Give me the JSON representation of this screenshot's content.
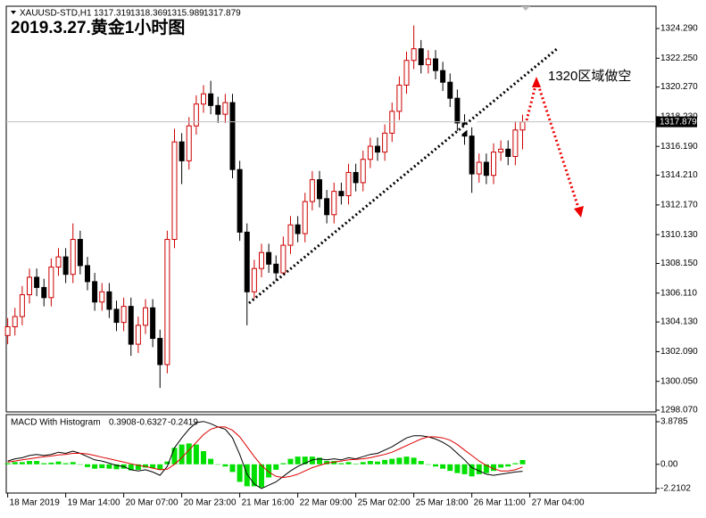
{
  "chart_data": {
    "type": "candlestick",
    "title": "2019.3.27.黄金1小时图",
    "symbol": "XAUUSD-STD,H1",
    "annotation": "1320区域做空",
    "bull_color": "#cc0000",
    "bear_color": "#000000",
    "open": [
      1303.2,
      1303.8,
      1304.5,
      1306.0,
      1307.2,
      1306.5,
      1305.8,
      1307.9,
      1308.6,
      1307.4,
      1309.8,
      1308.0,
      1306.9,
      1305.5,
      1306.2,
      1305.0,
      1304.1,
      1305.2,
      1302.6,
      1303.9,
      1305.1,
      1303.0,
      1301.2,
      1309.8,
      1316.5,
      1315.2,
      1317.6,
      1319.1,
      1319.8,
      1319.0,
      1318.4,
      1319.2,
      1314.6,
      1310.3,
      1306.2,
      1307.8,
      1308.9,
      1308.1,
      1307.5,
      1309.4,
      1310.8,
      1310.2,
      1312.4,
      1313.9,
      1312.6,
      1311.5,
      1313.1,
      1312.8,
      1314.4,
      1313.7,
      1315.3,
      1316.2,
      1315.8,
      1317.1,
      1318.6,
      1320.4,
      1322.1,
      1322.9,
      1321.8,
      1322.2,
      1321.4,
      1320.6,
      1319.5,
      1317.8,
      1316.9,
      1314.3,
      1315.1,
      1314.2,
      1315.8,
      1316.0,
      1315.5,
      1317.319
    ],
    "high": [
      1304.4,
      1305.1,
      1306.6,
      1307.8,
      1307.8,
      1307.1,
      1308.5,
      1309.2,
      1309.2,
      1310.9,
      1310.4,
      1308.6,
      1307.5,
      1306.8,
      1306.8,
      1305.6,
      1305.8,
      1305.8,
      1304.5,
      1305.7,
      1305.7,
      1303.6,
      1310.4,
      1317.4,
      1317.1,
      1318.2,
      1319.7,
      1320.4,
      1320.7,
      1319.6,
      1319.8,
      1319.8,
      1315.2,
      1310.9,
      1308.4,
      1309.5,
      1309.5,
      1308.7,
      1310.0,
      1311.4,
      1311.4,
      1313.0,
      1314.5,
      1314.5,
      1313.2,
      1313.7,
      1313.7,
      1315.0,
      1315.0,
      1315.9,
      1316.8,
      1316.8,
      1317.7,
      1319.2,
      1321.0,
      1322.7,
      1324.5,
      1323.5,
      1322.8,
      1322.8,
      1322.0,
      1321.2,
      1320.1,
      1318.4,
      1317.5,
      1315.7,
      1315.7,
      1316.4,
      1316.6,
      1316.6,
      1317.9,
      1318.369
    ],
    "low": [
      1302.6,
      1303.2,
      1303.9,
      1305.4,
      1305.9,
      1305.2,
      1305.2,
      1307.3,
      1306.8,
      1306.8,
      1307.4,
      1306.3,
      1304.9,
      1304.9,
      1304.4,
      1303.5,
      1303.5,
      1301.8,
      1302.0,
      1303.3,
      1302.4,
      1299.6,
      1300.6,
      1309.2,
      1313.6,
      1314.6,
      1317.0,
      1318.5,
      1318.4,
      1317.8,
      1317.8,
      1314.0,
      1309.7,
      1303.9,
      1305.6,
      1307.2,
      1307.5,
      1306.9,
      1306.9,
      1308.8,
      1309.6,
      1309.6,
      1311.8,
      1312.0,
      1310.9,
      1310.9,
      1312.2,
      1312.2,
      1313.1,
      1313.1,
      1314.7,
      1315.2,
      1315.2,
      1316.5,
      1318.0,
      1319.8,
      1321.5,
      1321.2,
      1321.2,
      1320.8,
      1320.0,
      1318.9,
      1317.2,
      1316.3,
      1313.0,
      1313.7,
      1313.6,
      1313.6,
      1315.2,
      1314.9,
      1314.9,
      1315.989
    ],
    "close": [
      1303.8,
      1304.5,
      1306.0,
      1307.2,
      1306.5,
      1305.8,
      1307.9,
      1308.6,
      1307.4,
      1309.8,
      1308.0,
      1306.9,
      1305.5,
      1306.2,
      1305.0,
      1304.1,
      1305.2,
      1302.6,
      1303.9,
      1305.1,
      1303.0,
      1301.2,
      1309.8,
      1316.5,
      1315.2,
      1317.6,
      1319.1,
      1319.8,
      1319.0,
      1318.4,
      1319.2,
      1314.6,
      1310.3,
      1306.2,
      1307.8,
      1308.9,
      1308.1,
      1307.5,
      1309.4,
      1310.8,
      1310.2,
      1312.4,
      1313.9,
      1312.6,
      1311.5,
      1313.1,
      1312.8,
      1314.4,
      1313.7,
      1315.3,
      1316.2,
      1315.8,
      1317.1,
      1318.6,
      1320.4,
      1322.1,
      1322.9,
      1321.8,
      1322.2,
      1321.4,
      1320.6,
      1319.5,
      1317.8,
      1316.9,
      1314.3,
      1315.1,
      1314.2,
      1315.8,
      1316.0,
      1315.5,
      1317.319,
      1317.879
    ],
    "xlim": [
      -0.2,
      89.4
    ],
    "xticks": [
      {
        "value": 0,
        "label": "18 Mar 2019"
      },
      {
        "value": 8,
        "label": "19 Mar 14:00"
      },
      {
        "value": 16,
        "label": "20 Mar 07:00"
      },
      {
        "value": 24,
        "label": "20 Mar 23:00"
      },
      {
        "value": 32,
        "label": "21 Mar 16:00"
      },
      {
        "value": 40,
        "label": "22 Mar 09:00"
      },
      {
        "value": 48,
        "label": "25 Mar 02:00"
      },
      {
        "value": 56,
        "label": "25 Mar 18:00"
      },
      {
        "value": 64,
        "label": "26 Mar 11:00"
      },
      {
        "value": 72,
        "label": "27 Mar 04:00"
      }
    ],
    "ylim": [
      1297.95,
      1325.82
    ],
    "yticks": [
      {
        "value": 1324.29,
        "label": "1324.290"
      },
      {
        "value": 1322.25,
        "label": "1322.250"
      },
      {
        "value": 1320.27,
        "label": "1320.270"
      },
      {
        "value": 1318.23,
        "label": "1318.230"
      },
      {
        "value": 1316.19,
        "label": "1316.190"
      },
      {
        "value": 1314.21,
        "label": "1314.210"
      },
      {
        "value": 1312.17,
        "label": "1312.170"
      },
      {
        "value": 1310.13,
        "label": "1310.130"
      },
      {
        "value": 1308.15,
        "label": "1308.150"
      },
      {
        "value": 1306.11,
        "label": "1306.110"
      },
      {
        "value": 1304.13,
        "label": "1304.130"
      },
      {
        "value": 1302.09,
        "label": "1302.090"
      },
      {
        "value": 1300.05,
        "label": "1300.050"
      },
      {
        "value": 1298.07,
        "label": "1298.070"
      }
    ],
    "macd": {
      "title": "MACD With Histogram",
      "ylim": [
        -2.616,
        4.528
      ],
      "yticks": [
        3.8785,
        {
          "value": 0,
          "label": "0.00"
        },
        -2.2102
      ],
      "histogram_color": "#00e000",
      "macd_color": "#000000",
      "signal_color": "#dd0000",
      "histogram": [
        0.1,
        0.2,
        0.2,
        0.3,
        0.3,
        0.1,
        0.15,
        0.25,
        0.1,
        0.2,
        0.0,
        -0.25,
        -0.4,
        -0.35,
        -0.4,
        -0.45,
        -0.4,
        -0.55,
        -0.5,
        -0.3,
        -0.35,
        -0.5,
        0.25,
        1.5,
        1.8,
        1.9,
        1.8,
        1.2,
        0.5,
        0.0,
        -0.2,
        -0.7,
        -1.6,
        -2.0,
        -2.0,
        -2.1,
        -1.2,
        -0.5,
        0.1,
        0.5,
        0.7,
        0.7,
        0.7,
        0.6,
        0.3,
        0.3,
        0.1,
        0.2,
        0.05,
        0.2,
        0.3,
        0.25,
        0.4,
        0.5,
        0.6,
        0.7,
        0.6,
        0.3,
        0.0,
        -0.2,
        -0.4,
        -0.6,
        -0.8,
        -0.9,
        -1.1,
        -0.9,
        -0.8,
        -0.6,
        -0.3,
        -0.2,
        0.1,
        0.3908
      ],
      "macd": [
        0.3,
        0.5,
        0.6,
        0.8,
        0.9,
        0.8,
        0.9,
        1.1,
        1.0,
        1.2,
        1.0,
        0.7,
        0.4,
        0.3,
        0.1,
        -0.1,
        -0.2,
        -0.5,
        -0.6,
        -0.5,
        -0.7,
        -1.0,
        -0.2,
        1.5,
        2.4,
        3.2,
        3.8,
        3.9,
        3.7,
        3.4,
        3.2,
        2.4,
        0.9,
        -0.9,
        -1.8,
        -2.2,
        -1.9,
        -1.6,
        -1.1,
        -0.6,
        -0.2,
        0.1,
        0.4,
        0.5,
        0.4,
        0.5,
        0.4,
        0.6,
        0.5,
        0.7,
        0.9,
        1.0,
        1.3,
        1.6,
        2.0,
        2.4,
        2.6,
        2.6,
        2.5,
        2.3,
        2.0,
        1.6,
        1.0,
        0.4,
        -0.3,
        -0.6,
        -0.9,
        -1.0,
        -0.9,
        -0.8,
        -0.7,
        -0.6327
      ],
      "signal": [
        0.2,
        0.3,
        0.4,
        0.5,
        0.6,
        0.7,
        0.75,
        0.85,
        0.9,
        1.0,
        1.0,
        0.95,
        0.8,
        0.65,
        0.5,
        0.35,
        0.2,
        0.05,
        -0.1,
        -0.2,
        -0.35,
        -0.5,
        -0.45,
        0.0,
        0.6,
        1.3,
        2.0,
        2.7,
        3.2,
        3.4,
        3.4,
        3.1,
        2.5,
        1.6,
        0.7,
        -0.1,
        -0.7,
        -1.1,
        -1.2,
        -1.1,
        -0.9,
        -0.6,
        -0.3,
        -0.1,
        0.1,
        0.2,
        0.3,
        0.4,
        0.45,
        0.5,
        0.6,
        0.75,
        0.9,
        1.1,
        1.4,
        1.7,
        2.0,
        2.3,
        2.5,
        2.5,
        2.4,
        2.2,
        1.8,
        1.3,
        0.8,
        0.3,
        -0.1,
        -0.4,
        -0.6,
        -0.6,
        -0.5,
        -0.2419
      ]
    }
  }
}
